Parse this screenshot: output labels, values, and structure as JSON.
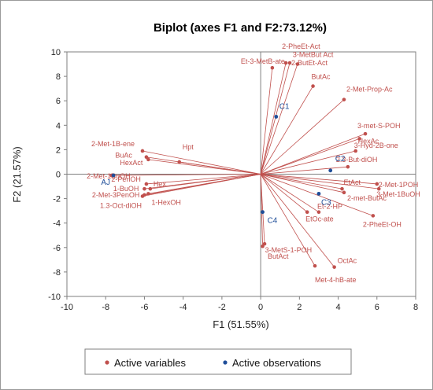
{
  "chart_data": {
    "type": "scatter",
    "title": "Biplot (axes F1 and F2:73.12%)",
    "xlabel": "F1 (51.55%)",
    "ylabel": "F2 (21.57%)",
    "xlim": [
      -10,
      8
    ],
    "ylim": [
      -10,
      10
    ],
    "xticks": [
      -10,
      -8,
      -6,
      -4,
      -2,
      0,
      2,
      4,
      6,
      8
    ],
    "yticks": [
      -10,
      -8,
      -6,
      -4,
      -2,
      0,
      2,
      4,
      6,
      8,
      10
    ],
    "grid": false,
    "legend": {
      "placement": "bottom",
      "entries": [
        {
          "name": "Active variables",
          "color": "#c0504d"
        },
        {
          "name": "Active observations",
          "color": "#1f4e99"
        }
      ]
    },
    "colors": {
      "variables": "#c0504d",
      "observations": "#1f4e99"
    },
    "variables": [
      {
        "label": "Et-3-MetB-ate",
        "x": 0.6,
        "y": 8.7,
        "anchor": "end",
        "dx": 16,
        "dy": -5
      },
      {
        "label": "2-PheEt-Act",
        "x": 1.3,
        "y": 9.1,
        "anchor": "start",
        "dx": -5,
        "dy": -18
      },
      {
        "label": "3-MetBut Act",
        "x": 1.9,
        "y": 9.0,
        "anchor": "start",
        "dx": -6,
        "dy": -9
      },
      {
        "label": "2-ButEt-Act",
        "x": 1.5,
        "y": 9.1,
        "anchor": "start",
        "dx": 2,
        "dy": 3
      },
      {
        "label": "ButAc",
        "x": 2.7,
        "y": 7.2,
        "anchor": "start",
        "dx": -2,
        "dy": -9
      },
      {
        "label": "2-Met-Prop-Ac",
        "x": 4.3,
        "y": 6.1,
        "anchor": "start",
        "dx": 3,
        "dy": -10
      },
      {
        "label": "3-met-S-POH",
        "x": 5.4,
        "y": 3.3,
        "anchor": "start",
        "dx": -10,
        "dy": -7
      },
      {
        "label": "HexAc",
        "x": 5.1,
        "y": 2.9,
        "anchor": "start",
        "dx": -2,
        "dy": 6
      },
      {
        "label": "3-Hyd-2B-one",
        "x": 4.9,
        "y": 1.9,
        "anchor": "start",
        "dx": -2,
        "dy": -4
      },
      {
        "label": "2.3-But-diOH",
        "x": 4.5,
        "y": 0.6,
        "anchor": "start",
        "dx": -15,
        "dy": -6
      },
      {
        "label": "2-Met-1POH",
        "x": 6.0,
        "y": -0.8,
        "anchor": "start",
        "dx": 2,
        "dy": 4
      },
      {
        "label": "EtAct",
        "x": 4.2,
        "y": -1.2,
        "anchor": "start",
        "dx": 2,
        "dy": -5
      },
      {
        "label": "3-Met-1BuOH",
        "x": 6.1,
        "y": -1.2,
        "anchor": "start",
        "dx": -3,
        "dy": 10
      },
      {
        "label": "2-met-ButAc",
        "x": 4.3,
        "y": -1.5,
        "anchor": "start",
        "dx": 4,
        "dy": 10
      },
      {
        "label": "2-PheEt-OH",
        "x": 5.8,
        "y": -3.4,
        "anchor": "start",
        "dx": -13,
        "dy": 14
      },
      {
        "label": "Et-2-HP",
        "x": 3.0,
        "y": -3.1,
        "anchor": "start",
        "dx": -2,
        "dy": -4
      },
      {
        "label": "EtOc-ate",
        "x": 2.4,
        "y": -3.1,
        "anchor": "start",
        "dx": -2,
        "dy": 12
      },
      {
        "label": "3-MetS-1-POH",
        "x": 0.1,
        "y": -5.9,
        "anchor": "start",
        "dx": 3,
        "dy": 8
      },
      {
        "label": "ButAct",
        "x": 0.2,
        "y": -5.7,
        "anchor": "start",
        "dx": 4,
        "dy": 19
      },
      {
        "label": "OctAc",
        "x": 3.8,
        "y": -7.6,
        "anchor": "start",
        "dx": 4,
        "dy": -5
      },
      {
        "label": "Met-4-hB-ate",
        "x": 2.8,
        "y": -7.5,
        "anchor": "start",
        "dx": 0,
        "dy": 21
      },
      {
        "label": "2-Met-1B-ene",
        "x": -6.1,
        "y": 1.9,
        "anchor": "end",
        "dx": -10,
        "dy": -6
      },
      {
        "label": "Hpt",
        "x": -4.2,
        "y": 1.0,
        "anchor": "start",
        "dx": 4,
        "dy": -16
      },
      {
        "label": "BuAc",
        "x": -5.9,
        "y": 1.4,
        "anchor": "end",
        "dx": -18,
        "dy": 1
      },
      {
        "label": "HexAct",
        "x": -5.8,
        "y": 1.2,
        "anchor": "end",
        "dx": -7,
        "dy": 7
      },
      {
        "label": "2-Met-1BuOH",
        "x": -7.7,
        "y": -0.1,
        "anchor": "end",
        "dx": 24,
        "dy": 4
      },
      {
        "label": "2-PenOH",
        "x": -5.9,
        "y": -0.8,
        "anchor": "end",
        "dx": -7,
        "dy": -3
      },
      {
        "label": "1-BuOH",
        "x": -6.0,
        "y": -1.2,
        "anchor": "end",
        "dx": -7,
        "dy": 3
      },
      {
        "label": "Hex",
        "x": -5.7,
        "y": -1.2,
        "anchor": "start",
        "dx": 4,
        "dy": -3
      },
      {
        "label": "2-Met-3PenOH",
        "x": -6.0,
        "y": -1.7,
        "anchor": "end",
        "dx": -6,
        "dy": 3
      },
      {
        "label": "1.3-Oct-diOH",
        "x": -6.1,
        "y": -1.8,
        "anchor": "end",
        "dx": -1,
        "dy": 15
      },
      {
        "label": "1-HexOH",
        "x": -5.8,
        "y": -1.6,
        "anchor": "start",
        "dx": 4,
        "dy": 14
      }
    ],
    "observations": [
      {
        "label": "AJ",
        "x": -7.6,
        "y": -0.1,
        "anchor": "end",
        "dx": -4,
        "dy": 12
      },
      {
        "label": "C1",
        "x": 0.8,
        "y": 4.7,
        "anchor": "start",
        "dx": 4,
        "dy": -10
      },
      {
        "label": "C2",
        "x": 3.6,
        "y": 0.3,
        "anchor": "start",
        "dx": 6,
        "dy": -12
      },
      {
        "label": "C3",
        "x": 3.0,
        "y": -1.6,
        "anchor": "start",
        "dx": 3,
        "dy": 14
      },
      {
        "label": "C4",
        "x": 0.1,
        "y": -3.1,
        "anchor": "start",
        "dx": 6,
        "dy": 14
      }
    ]
  }
}
